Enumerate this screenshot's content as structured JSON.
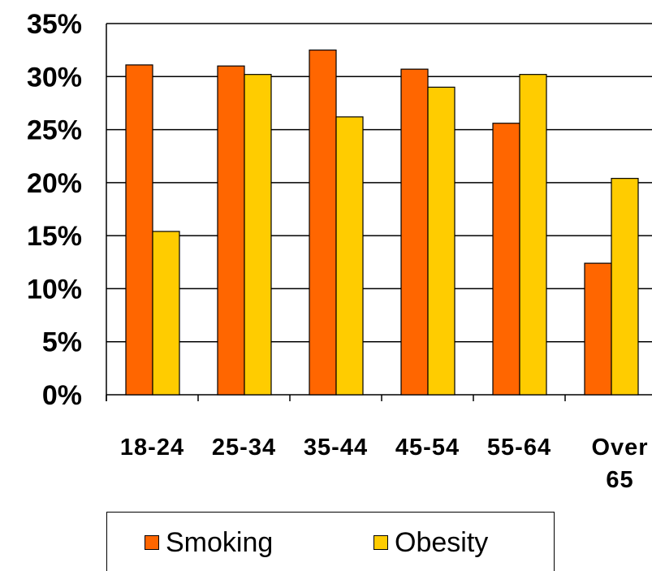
{
  "chart_data": {
    "type": "bar",
    "categories": [
      "18-24",
      "25-34",
      "35-44",
      "45-54",
      "55-64",
      "Over 65"
    ],
    "category_lines": [
      [
        "18-24"
      ],
      [
        "25-34"
      ],
      [
        "35-44"
      ],
      [
        "45-54"
      ],
      [
        "55-64"
      ],
      [
        "Over",
        "65"
      ]
    ],
    "series": [
      {
        "name": "Smoking",
        "values": [
          31.1,
          31.0,
          32.5,
          30.7,
          25.6,
          12.4
        ],
        "color": "#FF6600"
      },
      {
        "name": "Obesity",
        "values": [
          15.4,
          30.2,
          26.2,
          29.0,
          30.2,
          20.4
        ],
        "color": "#FFCC00"
      }
    ],
    "ylim": [
      0,
      35
    ],
    "yticks": [
      0,
      5,
      10,
      15,
      20,
      25,
      30,
      35
    ],
    "ytick_labels": [
      "0%",
      "5%",
      "10%",
      "15%",
      "20%",
      "25%",
      "30%",
      "35%"
    ],
    "grid": true,
    "legend_position": "bottom",
    "title": "",
    "xlabel": "",
    "ylabel": ""
  },
  "legend": {
    "smoking_label": "Smoking",
    "obesity_label": "Obesity",
    "smoking_color": "#FF6600",
    "obesity_color": "#FFCC00"
  }
}
